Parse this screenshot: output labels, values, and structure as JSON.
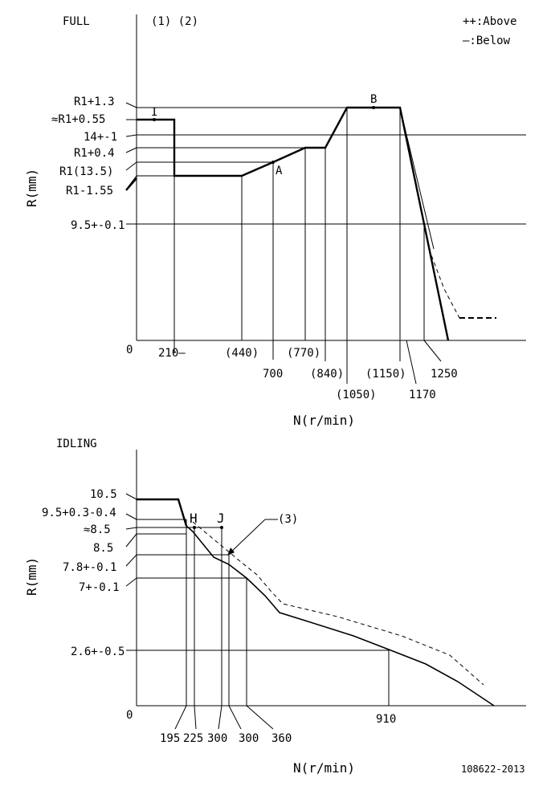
{
  "legend": {
    "above": "++:Above",
    "below": "—:Below"
  },
  "full": {
    "title": "FULL",
    "notes": "(1) (2)",
    "y_axis_label": "R(mm)",
    "x_axis_label": "N(r/min)",
    "origin_label": "0",
    "y_labels": [
      "R1+1.3",
      "≈R1+0.55",
      "14+-1",
      "R1+0.4",
      "R1(13.5)",
      "R1-1.55",
      "9.5+-0.1"
    ],
    "x_labels": [
      "210—",
      "(440)",
      "700",
      "(770)",
      "(840)",
      "(1050)",
      "(1150)",
      "1170",
      "1250"
    ],
    "points": {
      "I": "I",
      "A": "A",
      "B": "B"
    }
  },
  "idling": {
    "title": "IDLING",
    "note": "(3)",
    "y_axis_label": "R(mm)",
    "x_axis_label": "N(r/min)",
    "origin_label": "0",
    "y_labels": [
      "10.5",
      "9.5+0.3-0.4",
      "≈8.5",
      "8.5",
      "7.8+-0.1",
      "7+-0.1",
      "2.6+-0.5"
    ],
    "x_labels": [
      "195",
      "225",
      "300",
      "300",
      "360",
      "910"
    ],
    "points": {
      "H": "H",
      "J": "J"
    }
  },
  "doc_id": "108622-2013"
}
